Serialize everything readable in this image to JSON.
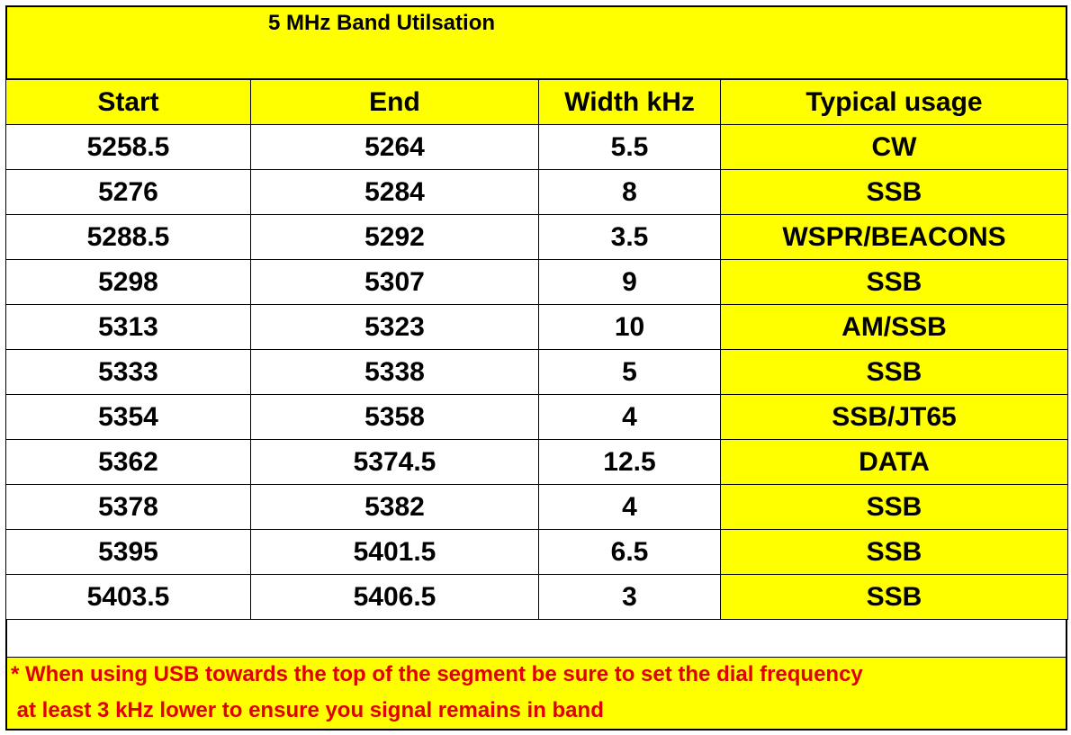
{
  "title": "5 MHz Band Utilsation",
  "table": {
    "header": [
      "Start",
      "End",
      "Width kHz",
      "Typical usage"
    ],
    "rows": [
      [
        "5258.5",
        "5264",
        "5.5",
        "CW"
      ],
      [
        "5276",
        "5284",
        "8",
        "SSB"
      ],
      [
        "5288.5",
        "5292",
        "3.5",
        "WSPR/BEACONS"
      ],
      [
        "5298",
        "5307",
        "9",
        "SSB"
      ],
      [
        "5313",
        "5323",
        "10",
        "AM/SSB"
      ],
      [
        "5333",
        "5338",
        "5",
        "SSB"
      ],
      [
        "5354",
        "5358",
        "4",
        "SSB/JT65"
      ],
      [
        "5362",
        "5374.5",
        "12.5",
        "DATA"
      ],
      [
        "5378",
        "5382",
        "4",
        "SSB"
      ],
      [
        "5395",
        "5401.5",
        "6.5",
        "SSB"
      ],
      [
        "5403.5",
        "5406.5",
        "3",
        "SSB"
      ]
    ]
  },
  "footnote": [
    "* When using USB towards the top of the segment be sure to set the dial frequency",
    " at least 3 kHz lower to ensure you signal remains in band"
  ]
}
